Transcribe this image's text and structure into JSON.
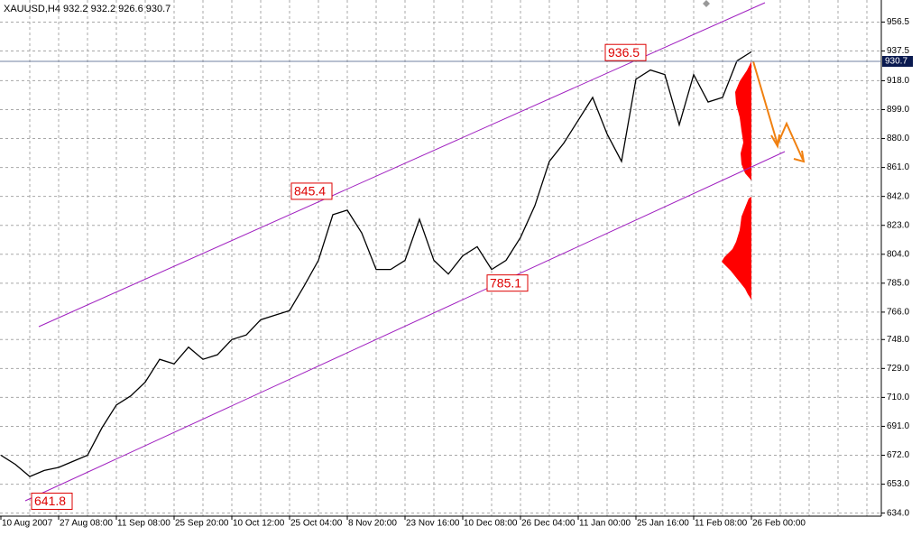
{
  "chart_data": {
    "type": "line",
    "title": "XAUUSD,H4  932.2 932.2 926.6 930.7",
    "categories": [
      "10 Aug 2007",
      null,
      null,
      null,
      "27 Aug 08:00",
      null,
      null,
      null,
      "11 Sep 08:00",
      null,
      null,
      null,
      "25 Sep 20:00",
      null,
      null,
      null,
      "10 Oct 12:00",
      null,
      null,
      null,
      "25 Oct 04:00",
      null,
      null,
      null,
      "8 Nov 20:00",
      null,
      null,
      null,
      "23 Nov 16:00",
      null,
      null,
      null,
      "10 Dec 08:00",
      null,
      null,
      null,
      "26 Dec 04:00",
      null,
      null,
      null,
      "11 Jan 00:00",
      null,
      null,
      null,
      "25 Jan 16:00",
      null,
      null,
      null,
      "11 Feb 08:00",
      null,
      null,
      null,
      "26 Feb 00:00"
    ],
    "series": [
      {
        "name": "XAUUSD,H4",
        "color": "#000000",
        "values": [
          672,
          666,
          658,
          662,
          664,
          668,
          672,
          690,
          705,
          711,
          720,
          735,
          732,
          743,
          735,
          738,
          748,
          751,
          761,
          764,
          767,
          783,
          800,
          830,
          833,
          818,
          794,
          794,
          800,
          827,
          800,
          791,
          803,
          809,
          794,
          800,
          815,
          836,
          865,
          877,
          892,
          907,
          883,
          865,
          919,
          925,
          922,
          889,
          922,
          904,
          907,
          931,
          937
        ]
      }
    ],
    "ylim": [
      632,
      971
    ],
    "yticks": [
      {
        "value": 634,
        "label": "634.0"
      },
      {
        "value": 653,
        "label": "653.0"
      },
      {
        "value": 672,
        "label": "672.0"
      },
      {
        "value": 691,
        "label": "691.0"
      },
      {
        "value": 710,
        "label": "710.0"
      },
      {
        "value": 729,
        "label": "729.0"
      },
      {
        "value": 748,
        "label": "748.0"
      },
      {
        "value": 766,
        "label": "766.0"
      },
      {
        "value": 785,
        "label": "785.0"
      },
      {
        "value": 804,
        "label": "804.0"
      },
      {
        "value": 823,
        "label": "823.0"
      },
      {
        "value": 842,
        "label": "842.0"
      },
      {
        "value": 861,
        "label": "861.0"
      },
      {
        "value": 880,
        "label": "880.0"
      },
      {
        "value": 899,
        "label": "899.0"
      },
      {
        "value": 918,
        "label": "918.0"
      },
      {
        "value": 937.5,
        "label": "937.5"
      },
      {
        "value": 956.5,
        "label": "956.5"
      }
    ],
    "grid": true,
    "current_price": 930.7,
    "annotations": [
      641.8,
      845.4,
      785.1,
      936.5
    ]
  }
}
